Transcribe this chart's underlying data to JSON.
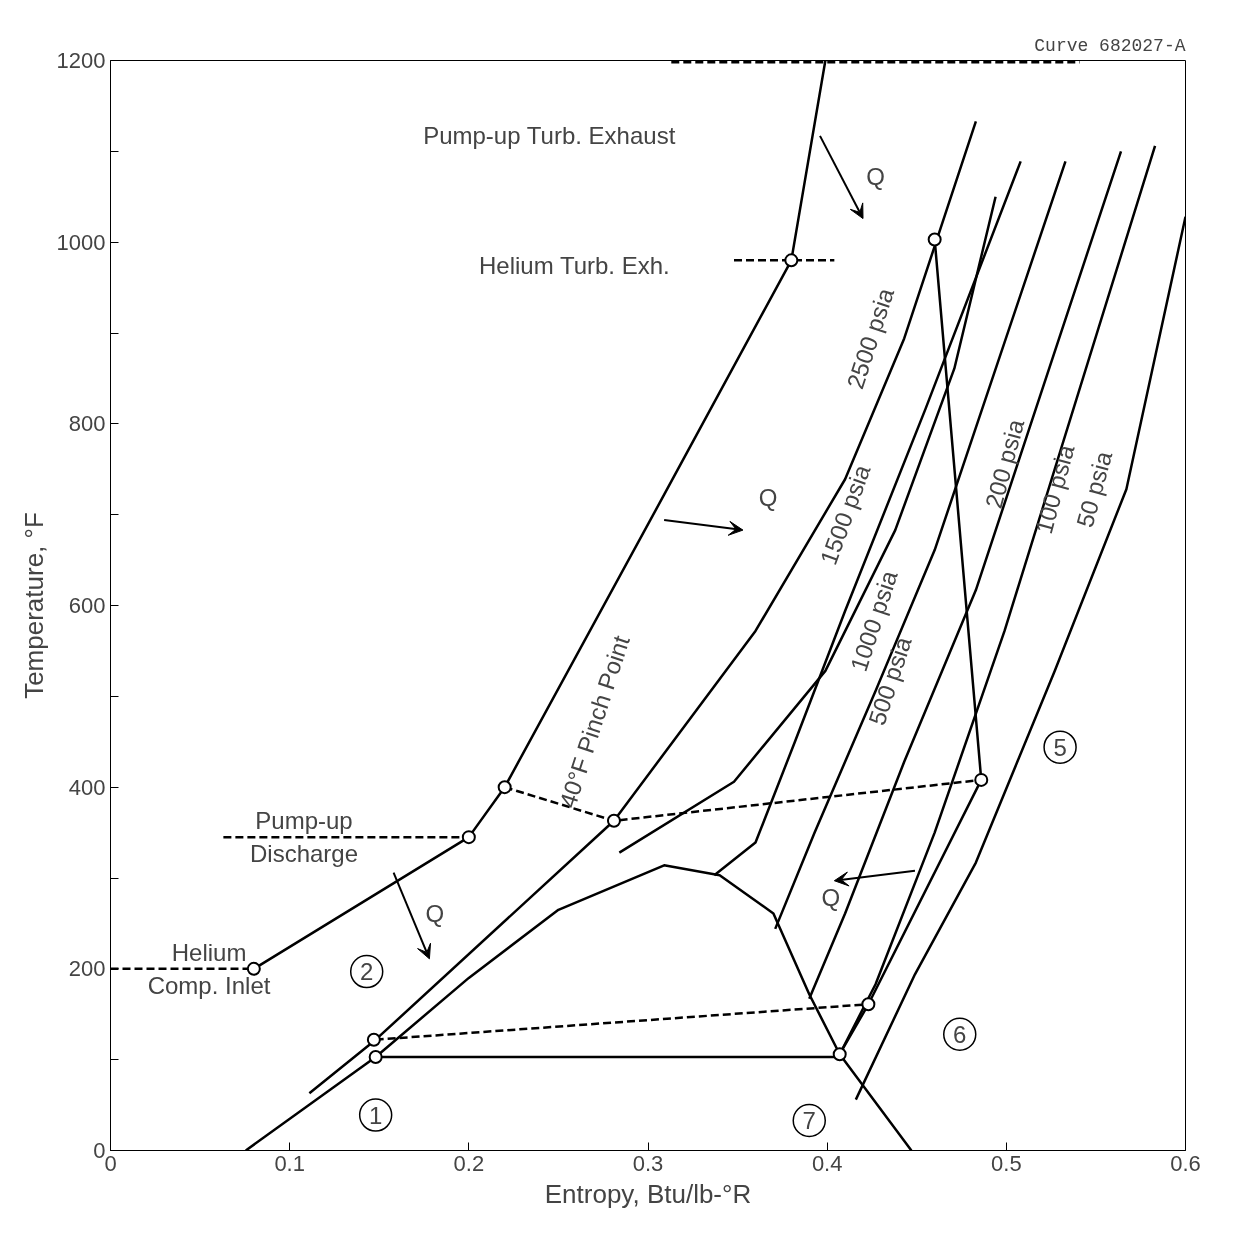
{
  "chart_data": {
    "type": "line",
    "xlabel": "Entropy, Btu/lb-°R",
    "ylabel": "Temperature, °F",
    "xlim": [
      0,
      0.6
    ],
    "ylim": [
      0,
      1200
    ],
    "xticks": [
      0,
      0.1,
      0.2,
      0.3,
      0.4,
      0.5,
      0.6
    ],
    "yticks": [
      0,
      {
        "value": 100,
        "label": null
      },
      200,
      {
        "value": 300,
        "label": null
      },
      400,
      {
        "value": 500,
        "label": null
      },
      600,
      {
        "value": 700,
        "label": null
      },
      800,
      {
        "value": 900,
        "label": null
      },
      1000,
      {
        "value": 1100,
        "label": null
      },
      1200
    ],
    "grid": false,
    "line_style": "solid",
    "series": [
      {
        "color": "#000000",
        "x": [
          0.08,
          0.2,
          0.22,
          0.309,
          0.38,
          0.399
        ],
        "values": [
          200,
          345,
          400,
          722,
          980,
          1200
        ]
      },
      {
        "color": "#000000",
        "line_style": "dashed",
        "x": [
          0,
          0.08
        ],
        "values": [
          200,
          200
        ]
      },
      {
        "color": "#000000",
        "line_style": "dashed",
        "x": [
          0.063,
          0.2
        ],
        "values": [
          345,
          345
        ]
      },
      {
        "color": "#000000",
        "line_style": "dashed",
        "x": [
          0.348,
          0.404
        ],
        "values": [
          980,
          980
        ]
      },
      {
        "color": "#000000",
        "line_style": "dashed",
        "x": [
          0.313,
          0.541
        ],
        "values": [
          1198,
          1198
        ]
      },
      {
        "color": "#000000",
        "x": [
          0.0755,
          0.148,
          0.2,
          0.25,
          0.309,
          0.34,
          0.37,
          0.39,
          0.407,
          0.447
        ],
        "values": [
          0,
          103,
          190,
          265,
          314,
          303,
          261,
          172,
          106,
          0
        ]
      },
      {
        "color": "#000000",
        "x": [
          0.111,
          0.148,
          0.281,
          0.36,
          0.41,
          0.443,
          0.483
        ],
        "values": [
          63,
          122,
          363,
          572,
          739,
          894,
          1133
        ]
      },
      {
        "color": "#000000",
        "x": [
          0.284,
          0.348,
          0.399,
          0.438,
          0.471,
          0.494
        ],
        "values": [
          328,
          406,
          528,
          683,
          861,
          1050
        ]
      },
      {
        "color": "#000000",
        "x": [
          0.337,
          0.36,
          0.382,
          0.41,
          0.455,
          0.508
        ],
        "values": [
          303,
          339,
          450,
          594,
          817,
          1089
        ]
      },
      {
        "color": "#000000",
        "x": [
          0.371,
          0.393,
          0.427,
          0.46,
          0.533
        ],
        "values": [
          244,
          350,
          506,
          661,
          1089
        ]
      },
      {
        "color": "#000000",
        "x": [
          0.39,
          0.41,
          0.443,
          0.483,
          0.564
        ],
        "values": [
          167,
          261,
          428,
          617,
          1100
        ]
      },
      {
        "color": "#000000",
        "x": [
          0.407,
          0.427,
          0.46,
          0.499,
          0.583
        ],
        "values": [
          106,
          183,
          350,
          572,
          1106
        ]
      },
      {
        "color": "#000000",
        "x": [
          0.416,
          0.449,
          0.483,
          0.527,
          0.567,
          0.6
        ],
        "values": [
          56,
          194,
          317,
          528,
          728,
          1028
        ]
      },
      {
        "color": "#000000",
        "x": [
          0.148,
          0.407
        ],
        "values": [
          103,
          103
        ]
      },
      {
        "color": "#000000",
        "x": [
          0.46,
          0.486,
          0.423,
          0.407
        ],
        "values": [
          1003,
          408,
          161,
          106
        ]
      },
      {
        "color": "#000000",
        "line_style": "dashed",
        "x": [
          0.22,
          0.281,
          0.486
        ],
        "values": [
          400,
          363,
          408
        ]
      },
      {
        "color": "#000000",
        "line_style": "dashed",
        "x": [
          0.148,
          0.423
        ],
        "values": [
          122,
          161
        ]
      },
      {
        "type": "scatter",
        "marker": "circle",
        "color": "#000000",
        "x": [
          0.08,
          0.2,
          0.22,
          0.38,
          0.281,
          0.46,
          0.486,
          0.423,
          0.407,
          0.148,
          0.147
        ],
        "values": [
          200,
          345,
          400,
          980,
          363,
          1003,
          408,
          161,
          106,
          103,
          122
        ]
      }
    ],
    "annotations": [
      "Curve 682027-A",
      "Pump-up Turb. Exhaust",
      "Helium Turb. Exh.",
      "Q",
      "Q",
      "Q",
      "Q",
      "2500 psia",
      "1500 psia",
      "1000 psia",
      "500 psia",
      "200 psia",
      "100 psia",
      "50 psia",
      "40°F Pinch Point",
      {
        "text": "Pump-up\nDischarge",
        "x": 0.108,
        "y": 345
      },
      {
        "text": "Helium\nComp. Inlet",
        "x": 0.055,
        "y": 200
      },
      "1",
      "2",
      "5",
      "6",
      "7"
    ]
  }
}
